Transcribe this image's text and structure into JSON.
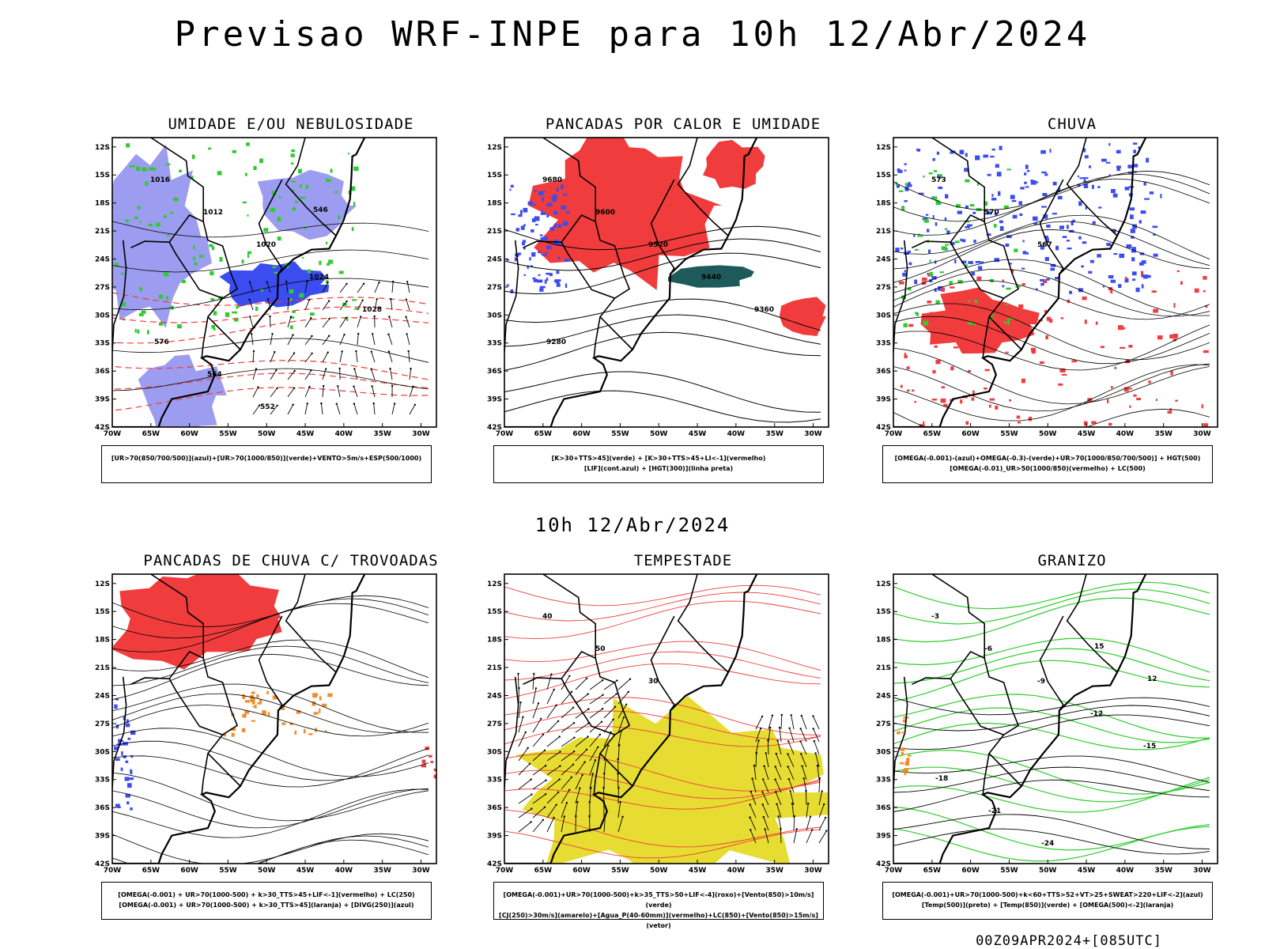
{
  "title": "Previsao WRF-INPE  para 10h 12/Abr/2024",
  "subtitle": "10h 12/Abr/2024",
  "footer": "00Z09APR2024+[085UTC]",
  "lat_labels": [
    "12S",
    "15S",
    "18S",
    "21S",
    "24S",
    "27S",
    "30S",
    "33S",
    "36S",
    "39S",
    "42S"
  ],
  "lon_labels": [
    "70W",
    "65W",
    "60W",
    "55W",
    "50W",
    "45W",
    "40W",
    "35W",
    "30W"
  ],
  "colors": {
    "blue": "#3b4cf0",
    "lavender": "#9c9cf0",
    "red": "#f03c3c",
    "green": "#2ecc2e",
    "teal": "#1e5a5a",
    "yellow": "#e6dc32",
    "orange": "#f08c28",
    "purple": "#a040c0"
  },
  "panels": [
    {
      "title": "UMIDADE E/OU NEBULOSIDADE",
      "legend": [
        "[UR>70(850/700/500)](azul)+[UR>70(1000/850)](verde)+VENTO>5m/s+ESP(500/1000)"
      ],
      "labels": [
        "1016",
        "1012",
        "1020",
        "1024",
        "1028",
        "576",
        "564",
        "552",
        "546"
      ]
    },
    {
      "title": "PANCADAS POR CALOR E UMIDADE",
      "legend": [
        "[K>30+TTS>45](verde) + [K>30+TTS>45+LI<-1](vermelho)",
        "[LIF](cont.azul) + [HGT(300)](linha preta)"
      ],
      "labels": [
        "9680",
        "9600",
        "9520",
        "9440",
        "9360",
        "9280"
      ]
    },
    {
      "title": "CHUVA",
      "legend": [
        "[OMEGA(-0.001)-(azul)+OMEGA(-0.3)-(verde)+UR>70(1000/850/700/500)] + HGT(500)",
        "[OMEGA(-0.01)_UR>50(1000/850)(vermelho) + LC(500)"
      ],
      "labels": [
        "573",
        "570",
        "567"
      ]
    },
    {
      "title": "PANCADAS DE CHUVA C/ TROVOADAS",
      "legend": [
        "[OMEGA(-0.001) + UR>70(1000-500) + k>30_TTS>45+LIF<-1](vermelho) + LC(250)",
        "[OMEGA(-0.001) + UR>70(1000-500) + k>30_TTS>45](laranja) + [DIVG(250)](azul)"
      ],
      "labels": []
    },
    {
      "title": "TEMPESTADE",
      "legend": [
        "[OMEGA(-0.001)+UR>70(1000-500)+k>35_TTS>50+LIF<-4](roxo)+[Vento(850)>10m/s](verde)",
        "[CJ(250)>30m/s](amarelo)+[Agua_P(40-60mm)](vermelho)+LC(850)+[Vento(850)>15m/s](vetor)"
      ],
      "labels": [
        "40",
        "50",
        "30"
      ]
    },
    {
      "title": "GRANIZO",
      "legend": [
        "[OMEGA(-0.001)+UR>70(1000-500)+k<60+TTS>52+VT>25+SWEAT>220+LIF<-2](azul)",
        "[Temp(500)](preto) + [Temp(850)](verde) + [OMEGA(500)<-2](laranja)"
      ],
      "labels": [
        "-3",
        "-6",
        "-9",
        "-12",
        "-15",
        "-18",
        "-21",
        "-24",
        "15",
        "12"
      ]
    }
  ]
}
